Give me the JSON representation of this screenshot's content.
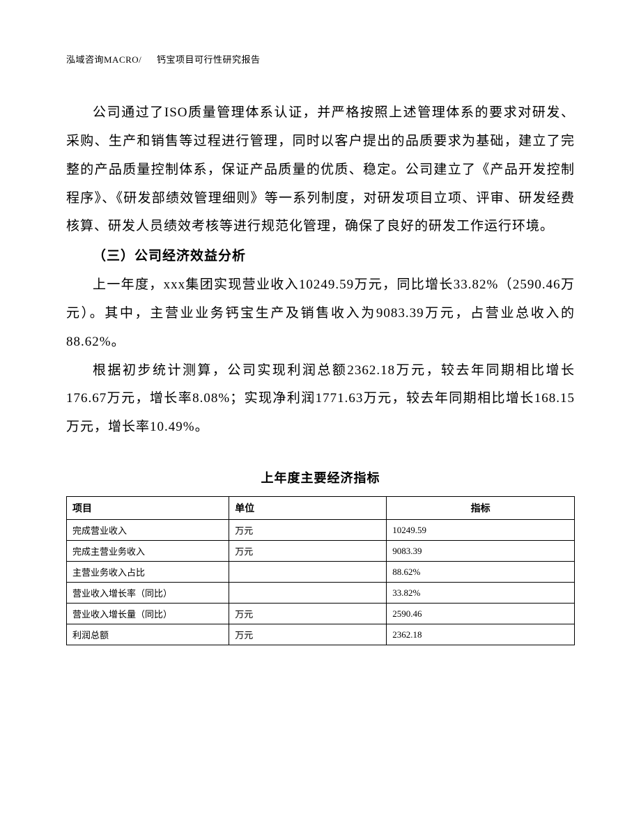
{
  "header": {
    "company": "泓域咨询MACRO/",
    "doc_title": "钙宝项目可行性研究报告"
  },
  "paragraphs": {
    "p1": "公司通过了ISO质量管理体系认证，并严格按照上述管理体系的要求对研发、采购、生产和销售等过程进行管理，同时以客户提出的品质要求为基础，建立了完整的产品质量控制体系，保证产品质量的优质、稳定。公司建立了《产品开发控制程序》、《研发部绩效管理细则》等一系列制度，对研发项目立项、评审、研发经费核算、研发人员绩效考核等进行规范化管理，确保了良好的研发工作运行环境。",
    "section_heading": "（三）公司经济效益分析",
    "p2": "上一年度，xxx集团实现营业收入10249.59万元，同比增长33.82%（2590.46万元）。其中，主营业业务钙宝生产及销售收入为9083.39万元，占营业总收入的88.62%。",
    "p3": "根据初步统计测算，公司实现利润总额2362.18万元，较去年同期相比增长176.67万元，增长率8.08%；实现净利润1771.63万元，较去年同期相比增长168.15万元，增长率10.49%。"
  },
  "table": {
    "title": "上年度主要经济指标",
    "columns": [
      "项目",
      "单位",
      "指标"
    ],
    "rows": [
      [
        "完成营业收入",
        "万元",
        "10249.59"
      ],
      [
        "完成主营业务收入",
        "万元",
        "9083.39"
      ],
      [
        "主营业务收入占比",
        "",
        "88.62%"
      ],
      [
        "营业收入增长率（同比）",
        "",
        "33.82%"
      ],
      [
        "营业收入增长量（同比）",
        "万元",
        "2590.46"
      ],
      [
        "利润总额",
        "万元",
        "2362.18"
      ]
    ]
  }
}
